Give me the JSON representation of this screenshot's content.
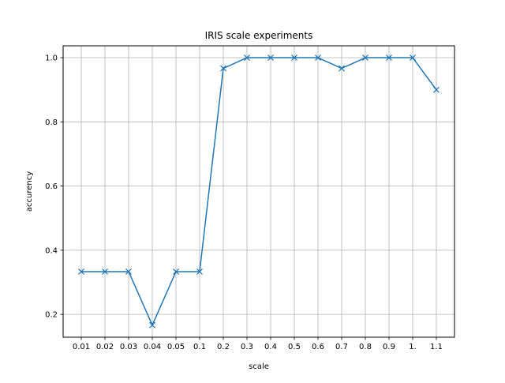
{
  "chart_data": {
    "type": "line",
    "title": "IRIS scale experiments",
    "xlabel": "scale",
    "ylabel": "accurency",
    "categories": [
      "0.01",
      "0.02",
      "0.03",
      "0.04",
      "0.05",
      "0.1",
      "0.2",
      "0.3",
      "0.4",
      "0.5",
      "0.6",
      "0.7",
      "0.8",
      "0.9",
      "1.",
      "1.1"
    ],
    "series": [
      {
        "values": [
          0.3333,
          0.3333,
          0.3333,
          0.1667,
          0.3333,
          0.3333,
          0.9667,
          1.0,
          1.0,
          1.0,
          1.0,
          0.9667,
          1.0,
          1.0,
          1.0,
          0.9
        ]
      }
    ],
    "ylim": [
      0.129,
      1.037
    ],
    "yticks": [
      "0.2",
      "0.4",
      "0.6",
      "0.8",
      "1.0"
    ],
    "ytick_values": [
      0.2,
      0.4,
      0.6,
      0.8,
      1.0
    ],
    "marker": "x",
    "grid": true,
    "colors": {
      "line": "#1f77b4",
      "grid": "#b0b0b0",
      "axes": "#000000"
    }
  }
}
